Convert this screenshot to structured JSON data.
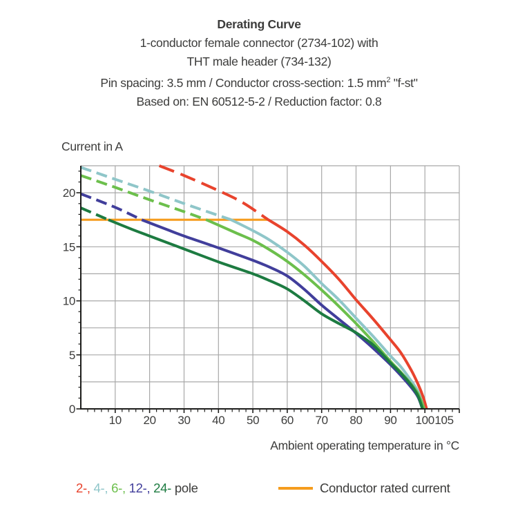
{
  "header": {
    "title": "Derating Curve",
    "line2": "1-conductor female connector (2734-102) with",
    "line3": "THT male header (734-132)",
    "line4_pre": "Pin spacing: 3.5 mm / Conductor cross-section: 1.5 mm",
    "line4_sup": "2",
    "line4_post": " \"f-st\"",
    "line5": "Based on: EN 60512-5-2 / Reduction factor: 0.8"
  },
  "chart": {
    "ylabel": "Current in A",
    "xlabel": "Ambient operating temperature in °C"
  },
  "legend": {
    "pole_items": [
      {
        "label": "2-,",
        "color": "#E8432D"
      },
      {
        "label": "4-,",
        "color": "#8FC6C9"
      },
      {
        "label": "6-,",
        "color": "#6CBF4C"
      },
      {
        "label": "12-,",
        "color": "#413E9B"
      },
      {
        "label": "24-",
        "color": "#1D7B41"
      }
    ],
    "pole_suffix": "pole",
    "rated_label": "Conductor rated current",
    "rated_color": "#F59C1D"
  },
  "chart_data": {
    "type": "line",
    "title": "Derating Curve",
    "xlabel": "Ambient operating temperature in °C",
    "ylabel": "Current in A",
    "xlim": [
      0,
      110
    ],
    "ylim": [
      0,
      22.5
    ],
    "x_major_ticks": [
      10,
      20,
      30,
      40,
      50,
      60,
      70,
      80,
      90,
      100,
      105
    ],
    "x_minor_step": 2,
    "y_major_ticks": [
      0,
      5,
      10,
      15,
      20
    ],
    "y_minor_step": 1,
    "grid_x_step": 10,
    "grid_y_step": 2.5,
    "grid_on": true,
    "grid_color": "#A8A8A8",
    "axis_color": "#1D1D1B",
    "rated_current": {
      "value": 17.5,
      "x_start": 0,
      "x_end": 54.5,
      "color": "#F59C1D",
      "label": "Conductor rated current"
    },
    "line_style_note": "dashed above rated current 17.5 A, solid below",
    "series": [
      {
        "name": "2-pole",
        "color": "#E8432D",
        "dashed": [
          [
            22.8,
            22.5
          ],
          [
            30,
            21.6
          ],
          [
            40,
            20.2
          ],
          [
            47,
            19.1
          ],
          [
            54.5,
            17.5
          ]
        ],
        "solid": [
          [
            54.5,
            17.5
          ],
          [
            60,
            16.4
          ],
          [
            65,
            15.15
          ],
          [
            70,
            13.65
          ],
          [
            75,
            12.0
          ],
          [
            80,
            10.1
          ],
          [
            85,
            8.3
          ],
          [
            90,
            6.4
          ],
          [
            93,
            5.2
          ],
          [
            96,
            3.6
          ],
          [
            98,
            2.3
          ],
          [
            99.5,
            1.1
          ],
          [
            100.5,
            0
          ]
        ]
      },
      {
        "name": "4-pole",
        "color": "#8FC6C9",
        "dashed": [
          [
            0,
            22.35
          ],
          [
            10,
            21.25
          ],
          [
            20,
            20.15
          ],
          [
            30,
            19.0
          ],
          [
            43.7,
            17.5
          ]
        ],
        "solid": [
          [
            43.7,
            17.5
          ],
          [
            50,
            16.5
          ],
          [
            55,
            15.6
          ],
          [
            60,
            14.5
          ],
          [
            65,
            13.2
          ],
          [
            70,
            11.6
          ],
          [
            75,
            10.1
          ],
          [
            80,
            8.4
          ],
          [
            85,
            6.7
          ],
          [
            90,
            4.9
          ],
          [
            93,
            3.9
          ],
          [
            96,
            2.6
          ],
          [
            98,
            1.6
          ],
          [
            99.8,
            0
          ]
        ]
      },
      {
        "name": "6-pole",
        "color": "#6CBF4C",
        "dashed": [
          [
            0,
            21.6
          ],
          [
            10,
            20.5
          ],
          [
            20,
            19.35
          ],
          [
            30,
            18.25
          ],
          [
            36.5,
            17.5
          ]
        ],
        "solid": [
          [
            36.5,
            17.5
          ],
          [
            45,
            16.3
          ],
          [
            50,
            15.6
          ],
          [
            55,
            14.7
          ],
          [
            60,
            13.65
          ],
          [
            65,
            12.4
          ],
          [
            70,
            11.0
          ],
          [
            75,
            9.5
          ],
          [
            80,
            7.9
          ],
          [
            85,
            6.2
          ],
          [
            90,
            4.4
          ],
          [
            93,
            3.4
          ],
          [
            96,
            2.3
          ],
          [
            98,
            1.4
          ],
          [
            99.8,
            0
          ]
        ]
      },
      {
        "name": "12-pole",
        "color": "#413E9B",
        "dashed": [
          [
            0,
            19.9
          ],
          [
            10,
            18.65
          ],
          [
            17.7,
            17.5
          ]
        ],
        "solid": [
          [
            17.7,
            17.5
          ],
          [
            25,
            16.6
          ],
          [
            30,
            16.0
          ],
          [
            40,
            14.9
          ],
          [
            50,
            13.75
          ],
          [
            55,
            13.1
          ],
          [
            60,
            12.3
          ],
          [
            65,
            11.05
          ],
          [
            70,
            9.6
          ],
          [
            75,
            8.3
          ],
          [
            80,
            7.0
          ],
          [
            85,
            5.6
          ],
          [
            90,
            4.1
          ],
          [
            93,
            3.1
          ],
          [
            96,
            2.0
          ],
          [
            98,
            1.1
          ],
          [
            99.3,
            0
          ]
        ]
      },
      {
        "name": "24-pole",
        "color": "#1D7B41",
        "dashed": [
          [
            0,
            18.6
          ],
          [
            8,
            17.5
          ]
        ],
        "solid": [
          [
            8,
            17.5
          ],
          [
            15,
            16.6
          ],
          [
            20,
            16.0
          ],
          [
            30,
            14.8
          ],
          [
            40,
            13.6
          ],
          [
            50,
            12.5
          ],
          [
            55,
            11.85
          ],
          [
            60,
            11.1
          ],
          [
            65,
            10.0
          ],
          [
            70,
            8.8
          ],
          [
            75,
            7.9
          ],
          [
            80,
            7.05
          ],
          [
            85,
            5.9
          ],
          [
            90,
            4.25
          ],
          [
            93,
            3.3
          ],
          [
            96,
            2.2
          ],
          [
            98,
            1.2
          ],
          [
            99.3,
            0
          ]
        ]
      }
    ]
  }
}
